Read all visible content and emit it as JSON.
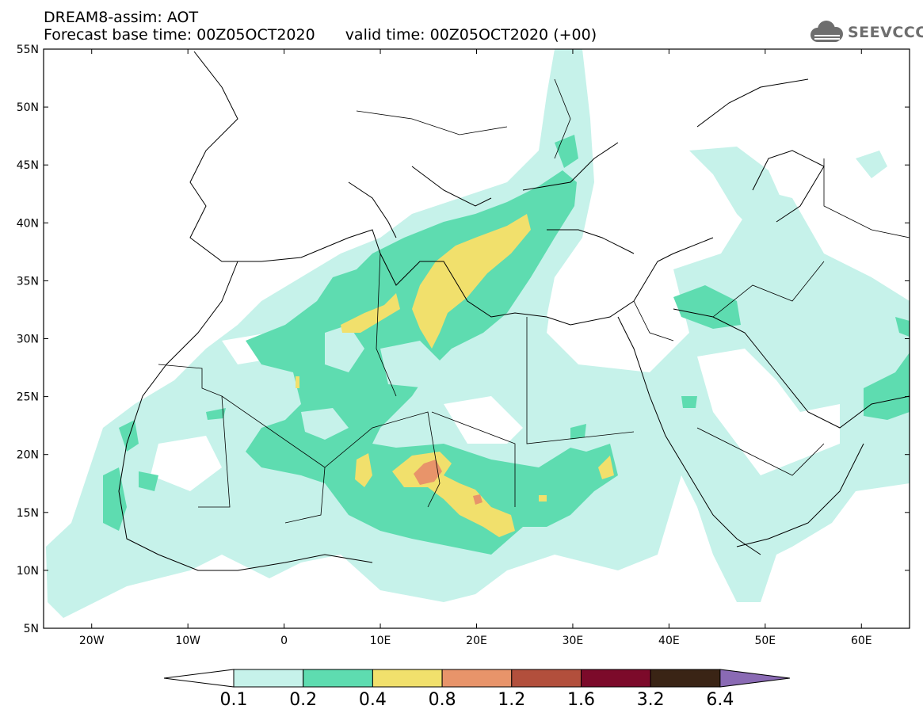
{
  "header": {
    "line1": "DREAM8-assim: AOT",
    "base_label": "Forecast base time: 00Z05OCT2020",
    "valid_label": "valid time: 00Z05OCT2020 (+00)"
  },
  "logo": {
    "text": "SEEVCCC",
    "icon": "cloud-icon"
  },
  "map": {
    "lat_ticks": [
      "55N",
      "50N",
      "45N",
      "40N",
      "35N",
      "30N",
      "25N",
      "20N",
      "15N",
      "10N",
      "5N"
    ],
    "lon_ticks": [
      "20W",
      "10W",
      "0",
      "10E",
      "20E",
      "30E",
      "40E",
      "50E",
      "60E"
    ],
    "lon_range": [
      -25,
      65
    ],
    "lat_range": [
      5,
      55
    ]
  },
  "colorbar": {
    "labels": [
      "0.1",
      "0.2",
      "0.4",
      "0.8",
      "1.2",
      "1.6",
      "3.2",
      "6.4"
    ],
    "colors": [
      "#c6f2ea",
      "#5edcb0",
      "#f1e06c",
      "#e8946a",
      "#b24f3c",
      "#7c0a2a",
      "#3a2415",
      "#8a6ab4"
    ],
    "under_color": "#ffffff"
  }
}
